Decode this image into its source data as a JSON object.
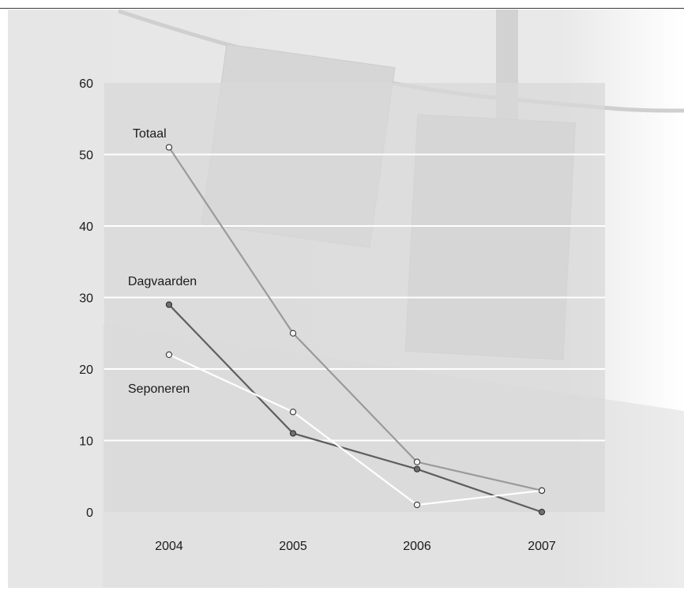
{
  "chart_data": {
    "type": "line",
    "x": [
      "2004",
      "2005",
      "2006",
      "2007"
    ],
    "ylim": [
      0,
      60
    ],
    "y_ticks": [
      "0",
      "10",
      "20",
      "30",
      "40",
      "50",
      "60"
    ],
    "grid": true,
    "series": [
      {
        "name": "Totaal",
        "values": [
          51,
          25,
          7,
          3
        ],
        "color": "#9a9a9a",
        "marker": "#f4f4f4"
      },
      {
        "name": "Dagvaarden",
        "values": [
          29,
          11,
          6,
          0
        ],
        "color": "#5e5e5e",
        "marker": "#6e6e6e"
      },
      {
        "name": "Seponeren",
        "values": [
          22,
          14,
          1,
          3
        ],
        "color": "#ffffff",
        "marker": "#f4f4f4"
      }
    ]
  }
}
